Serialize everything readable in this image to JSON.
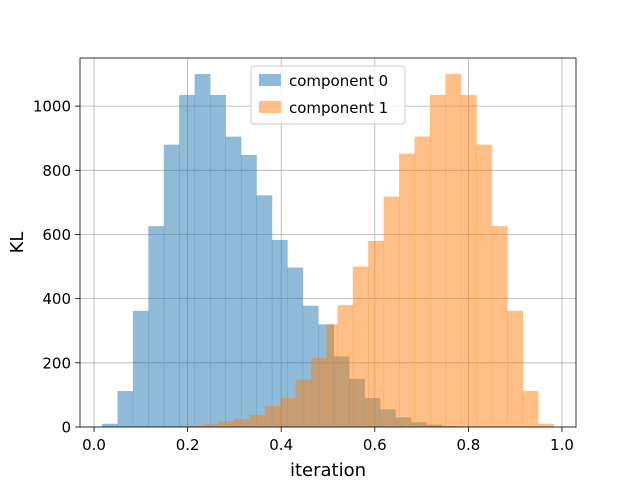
{
  "chart_data": {
    "type": "histogram",
    "title": "",
    "xlabel": "iteration",
    "ylabel": "KL",
    "xlim": [
      -0.03,
      1.03
    ],
    "ylim": [
      0,
      1150
    ],
    "xticks": [
      0.0,
      0.2,
      0.4,
      0.6,
      0.8,
      1.0
    ],
    "xtick_labels": [
      "0.0",
      "0.2",
      "0.4",
      "0.6",
      "0.8",
      "1.0"
    ],
    "yticks": [
      0,
      200,
      400,
      600,
      800,
      1000
    ],
    "ytick_labels": [
      "0",
      "200",
      "400",
      "600",
      "800",
      "1000"
    ],
    "grid": true,
    "legend_position": "top-center",
    "series": [
      {
        "name": "component 0",
        "color": "#1f77b4",
        "opacity": 0.5,
        "bins": [
          [
            0.017,
            0.05,
            10
          ],
          [
            0.05,
            0.083,
            112
          ],
          [
            0.083,
            0.116,
            362
          ],
          [
            0.116,
            0.149,
            626
          ],
          [
            0.149,
            0.182,
            880
          ],
          [
            0.182,
            0.215,
            1035
          ],
          [
            0.215,
            0.248,
            1100
          ],
          [
            0.248,
            0.281,
            1035
          ],
          [
            0.281,
            0.314,
            905
          ],
          [
            0.314,
            0.347,
            848
          ],
          [
            0.347,
            0.38,
            722
          ],
          [
            0.38,
            0.413,
            583
          ],
          [
            0.413,
            0.446,
            497
          ],
          [
            0.446,
            0.479,
            378
          ],
          [
            0.479,
            0.512,
            320
          ],
          [
            0.512,
            0.545,
            220
          ],
          [
            0.545,
            0.578,
            150
          ],
          [
            0.578,
            0.611,
            90
          ],
          [
            0.611,
            0.644,
            55
          ],
          [
            0.644,
            0.677,
            30
          ],
          [
            0.677,
            0.71,
            15
          ],
          [
            0.71,
            0.743,
            7
          ],
          [
            0.743,
            0.776,
            3
          ]
        ]
      },
      {
        "name": "component 1",
        "color": "#ff7f0e",
        "opacity": 0.5,
        "bins": [
          [
            0.2,
            0.233,
            3
          ],
          [
            0.233,
            0.266,
            8
          ],
          [
            0.266,
            0.299,
            18
          ],
          [
            0.299,
            0.332,
            25
          ],
          [
            0.332,
            0.365,
            38
          ],
          [
            0.365,
            0.398,
            65
          ],
          [
            0.398,
            0.431,
            90
          ],
          [
            0.431,
            0.464,
            148
          ],
          [
            0.464,
            0.497,
            215
          ],
          [
            0.497,
            0.52,
            320
          ],
          [
            0.52,
            0.553,
            380
          ],
          [
            0.553,
            0.586,
            500
          ],
          [
            0.586,
            0.619,
            580
          ],
          [
            0.619,
            0.652,
            718
          ],
          [
            0.652,
            0.685,
            852
          ],
          [
            0.685,
            0.718,
            905
          ],
          [
            0.718,
            0.751,
            1035
          ],
          [
            0.751,
            0.784,
            1100
          ],
          [
            0.784,
            0.817,
            1035
          ],
          [
            0.817,
            0.85,
            880
          ],
          [
            0.85,
            0.883,
            626
          ],
          [
            0.883,
            0.916,
            362
          ],
          [
            0.916,
            0.949,
            112
          ],
          [
            0.949,
            0.982,
            10
          ]
        ]
      }
    ]
  }
}
